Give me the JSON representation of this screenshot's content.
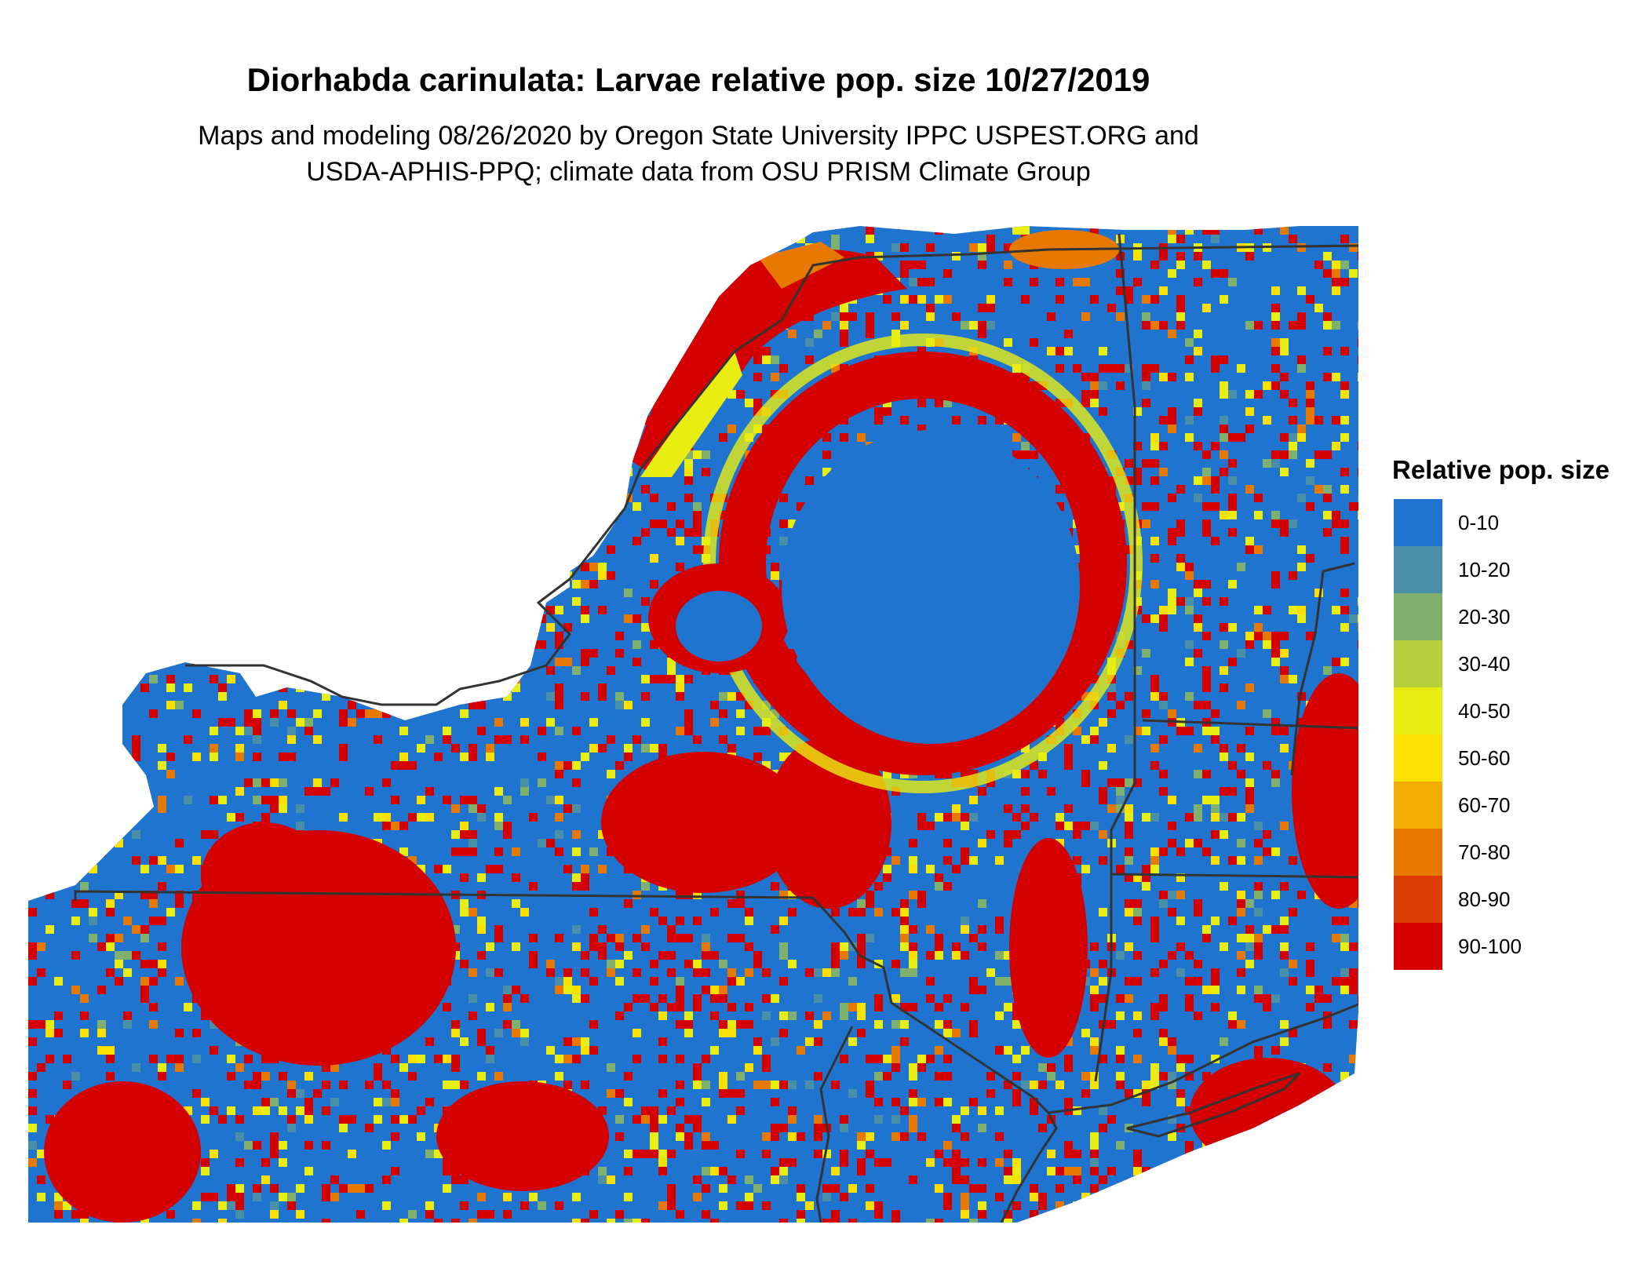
{
  "title": "Diorhabda carinulata: Larvae relative pop. size 10/27/2019",
  "subtitle_line1": "Maps and modeling 08/26/2020 by Oregon State University IPPC USPEST.ORG and",
  "subtitle_line2": "USDA-APHIS-PPQ; climate data from OSU PRISM Climate Group",
  "legend": {
    "title": "Relative pop. size",
    "items": [
      {
        "label": "0-10",
        "color": "#1f74d0"
      },
      {
        "label": "10-20",
        "color": "#4a8fa8"
      },
      {
        "label": "20-30",
        "color": "#7fb06d"
      },
      {
        "label": "30-40",
        "color": "#b5d03c"
      },
      {
        "label": "40-50",
        "color": "#e8ee12"
      },
      {
        "label": "50-60",
        "color": "#fbe100"
      },
      {
        "label": "60-70",
        "color": "#f2ac00"
      },
      {
        "label": "70-80",
        "color": "#e77800"
      },
      {
        "label": "80-90",
        "color": "#dd3d00"
      },
      {
        "label": "90-100",
        "color": "#d40000"
      }
    ]
  }
}
